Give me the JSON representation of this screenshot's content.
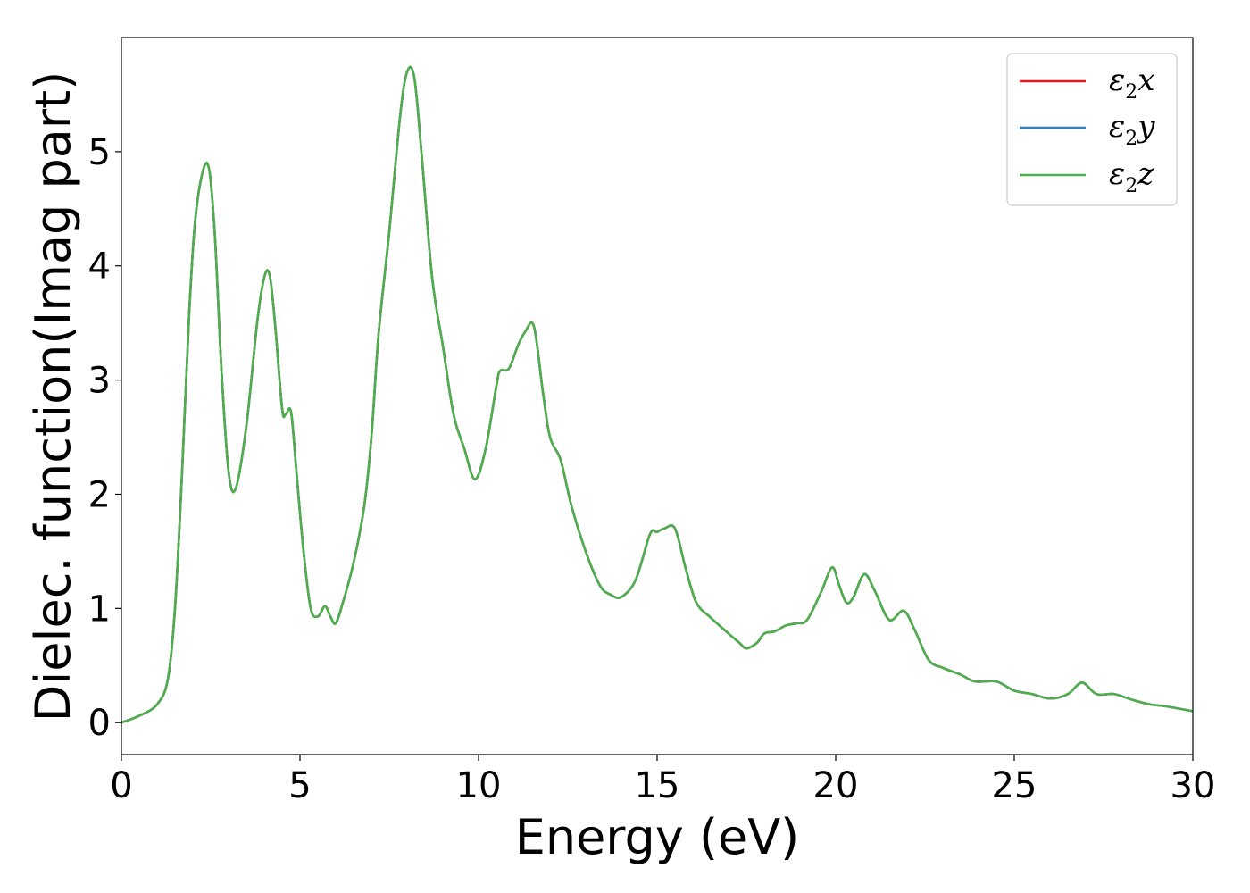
{
  "chart_data": {
    "type": "line",
    "title": "",
    "xlabel": "Energy (eV)",
    "ylabel": "Dielec. function(Imag part)",
    "xlim": [
      0,
      30
    ],
    "ylim": [
      -0.28,
      6.0
    ],
    "xticks": [
      "0",
      "5",
      "10",
      "15",
      "20",
      "25",
      "30"
    ],
    "yticks": [
      "0",
      "1",
      "2",
      "3",
      "4",
      "5"
    ],
    "grid": false,
    "legend_position": "top-right",
    "x": [
      0,
      0.5,
      1.0,
      1.3,
      1.5,
      1.7,
      1.9,
      2.1,
      2.4,
      2.6,
      2.8,
      3.0,
      3.2,
      3.5,
      3.8,
      4.0,
      4.15,
      4.3,
      4.5,
      4.6,
      4.75,
      4.9,
      5.1,
      5.3,
      5.5,
      5.7,
      5.85,
      6.0,
      6.2,
      6.5,
      6.8,
      7.0,
      7.2,
      7.5,
      7.8,
      8.0,
      8.2,
      8.4,
      8.7,
      9.0,
      9.3,
      9.6,
      9.9,
      10.2,
      10.5,
      10.6,
      10.85,
      11.1,
      11.3,
      11.55,
      11.8,
      12.0,
      12.3,
      12.6,
      13.0,
      13.4,
      13.7,
      14.0,
      14.4,
      14.8,
      15.0,
      15.2,
      15.5,
      15.8,
      16.1,
      16.5,
      17.0,
      17.3,
      17.5,
      17.8,
      18.0,
      18.3,
      18.6,
      18.9,
      19.2,
      19.6,
      19.9,
      20.1,
      20.3,
      20.5,
      20.8,
      21.1,
      21.5,
      21.9,
      22.2,
      22.6,
      23.0,
      23.5,
      23.9,
      24.5,
      25.0,
      25.5,
      26.0,
      26.5,
      26.9,
      27.3,
      27.8,
      28.3,
      28.8,
      29.3,
      30.0
    ],
    "series": [
      {
        "name": "ε₂x",
        "color": "#e41a1c",
        "values": [
          0,
          0.06,
          0.16,
          0.38,
          1.0,
          2.2,
          3.6,
          4.5,
          4.9,
          4.35,
          3.1,
          2.2,
          2.05,
          2.6,
          3.5,
          3.9,
          3.92,
          3.5,
          2.75,
          2.7,
          2.72,
          2.2,
          1.5,
          1.0,
          0.93,
          1.02,
          0.93,
          0.87,
          1.05,
          1.4,
          1.9,
          2.5,
          3.4,
          4.3,
          5.3,
          5.7,
          5.65,
          5.0,
          3.9,
          3.3,
          2.7,
          2.4,
          2.13,
          2.4,
          2.95,
          3.08,
          3.1,
          3.3,
          3.42,
          3.47,
          2.9,
          2.5,
          2.3,
          1.9,
          1.5,
          1.2,
          1.12,
          1.1,
          1.25,
          1.65,
          1.67,
          1.7,
          1.7,
          1.35,
          1.05,
          0.92,
          0.78,
          0.7,
          0.65,
          0.7,
          0.78,
          0.8,
          0.85,
          0.87,
          0.9,
          1.15,
          1.36,
          1.2,
          1.05,
          1.1,
          1.3,
          1.15,
          0.9,
          0.98,
          0.82,
          0.55,
          0.48,
          0.42,
          0.36,
          0.36,
          0.28,
          0.25,
          0.21,
          0.25,
          0.35,
          0.25,
          0.25,
          0.2,
          0.16,
          0.14,
          0.1
        ]
      },
      {
        "name": "ε₂y",
        "color": "#377eb8",
        "values": [
          0,
          0.06,
          0.16,
          0.38,
          1.0,
          2.2,
          3.6,
          4.5,
          4.9,
          4.35,
          3.1,
          2.2,
          2.05,
          2.6,
          3.5,
          3.9,
          3.92,
          3.5,
          2.75,
          2.7,
          2.72,
          2.2,
          1.5,
          1.0,
          0.93,
          1.02,
          0.93,
          0.87,
          1.05,
          1.4,
          1.9,
          2.5,
          3.4,
          4.3,
          5.3,
          5.7,
          5.65,
          5.0,
          3.9,
          3.3,
          2.7,
          2.4,
          2.13,
          2.4,
          2.95,
          3.08,
          3.1,
          3.3,
          3.42,
          3.47,
          2.9,
          2.5,
          2.3,
          1.9,
          1.5,
          1.2,
          1.12,
          1.1,
          1.25,
          1.65,
          1.67,
          1.7,
          1.7,
          1.35,
          1.05,
          0.92,
          0.78,
          0.7,
          0.65,
          0.7,
          0.78,
          0.8,
          0.85,
          0.87,
          0.9,
          1.15,
          1.36,
          1.2,
          1.05,
          1.1,
          1.3,
          1.15,
          0.9,
          0.98,
          0.82,
          0.55,
          0.48,
          0.42,
          0.36,
          0.36,
          0.28,
          0.25,
          0.21,
          0.25,
          0.35,
          0.25,
          0.25,
          0.2,
          0.16,
          0.14,
          0.1
        ]
      },
      {
        "name": "ε₂z",
        "color": "#4daf4a",
        "values": [
          0,
          0.06,
          0.16,
          0.38,
          1.0,
          2.2,
          3.6,
          4.5,
          4.9,
          4.35,
          3.1,
          2.2,
          2.05,
          2.6,
          3.5,
          3.9,
          3.92,
          3.5,
          2.75,
          2.7,
          2.72,
          2.2,
          1.5,
          1.0,
          0.93,
          1.02,
          0.93,
          0.87,
          1.05,
          1.4,
          1.9,
          2.5,
          3.4,
          4.3,
          5.3,
          5.7,
          5.65,
          5.0,
          3.9,
          3.3,
          2.7,
          2.4,
          2.13,
          2.4,
          2.95,
          3.08,
          3.1,
          3.3,
          3.42,
          3.47,
          2.9,
          2.5,
          2.3,
          1.9,
          1.5,
          1.2,
          1.12,
          1.1,
          1.25,
          1.65,
          1.67,
          1.7,
          1.7,
          1.35,
          1.05,
          0.92,
          0.78,
          0.7,
          0.65,
          0.7,
          0.78,
          0.8,
          0.85,
          0.87,
          0.9,
          1.15,
          1.36,
          1.2,
          1.05,
          1.1,
          1.3,
          1.15,
          0.9,
          0.98,
          0.82,
          0.55,
          0.48,
          0.42,
          0.36,
          0.36,
          0.28,
          0.25,
          0.21,
          0.25,
          0.35,
          0.25,
          0.25,
          0.2,
          0.16,
          0.14,
          0.1
        ]
      }
    ]
  },
  "legend": {
    "items": [
      {
        "symbol": "ε",
        "sub": "2",
        "axis": "x"
      },
      {
        "symbol": "ε",
        "sub": "2",
        "axis": "y"
      },
      {
        "symbol": "ε",
        "sub": "2",
        "axis": "z"
      }
    ]
  }
}
